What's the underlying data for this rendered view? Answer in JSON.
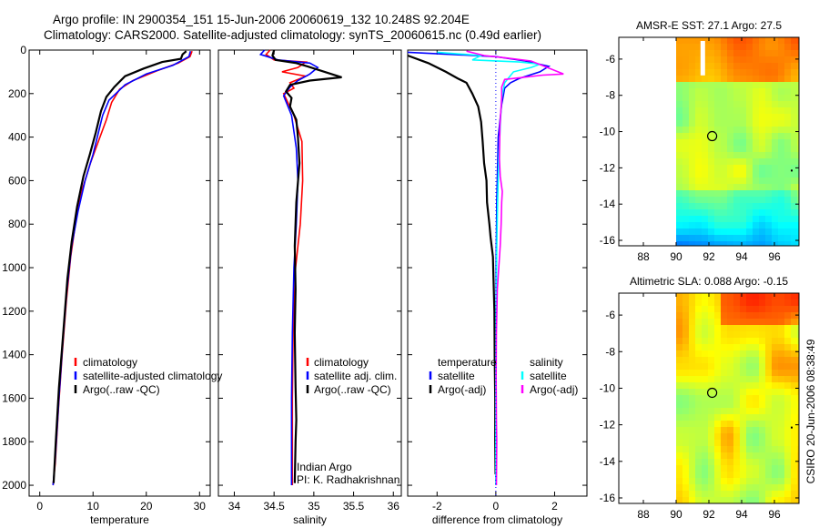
{
  "header": {
    "line1": "Argo profile: IN 2900354_151 15-Jun-2006 20060619_132 10.248S 92.204E",
    "line2": "Climatology: CARS2000. Satellite-adjusted climatology: synTS_20060615.nc (0.49d earlier)"
  },
  "side_label": "CSIRO 20-Jun-2006 08:38:49",
  "colors": {
    "red": "#ff0000",
    "blue": "#0000ff",
    "black": "#000000",
    "cyan": "#00ffff",
    "magenta": "#ff00ff"
  },
  "chart_data": [
    {
      "id": "temperature",
      "type": "line",
      "xlabel": "temperature",
      "ylabel": "",
      "xlim": [
        -2,
        32
      ],
      "ylim": [
        2050,
        0
      ],
      "xticks": [
        "0",
        "10",
        "20",
        "30"
      ],
      "xtick_values": [
        0,
        10,
        20,
        30
      ],
      "yticks": [
        "0",
        "200",
        "400",
        "600",
        "800",
        "1000",
        "1200",
        "1400",
        "1600",
        "1800",
        "2000"
      ],
      "ytick_values": [
        0,
        200,
        400,
        600,
        800,
        1000,
        1200,
        1400,
        1600,
        1800,
        2000
      ],
      "legend": {
        "position": "lower-right",
        "entries": [
          "climatology",
          "satellite-adjusted climatology",
          "Argo(..raw -QC)"
        ]
      },
      "series": [
        {
          "name": "climatology",
          "color": "red",
          "points": [
            [
              28.6,
              5
            ],
            [
              28.2,
              30
            ],
            [
              26,
              60
            ],
            [
              22,
              95
            ],
            [
              17.5,
              140
            ],
            [
              15,
              180
            ],
            [
              13.5,
              240
            ],
            [
              12.5,
              320
            ],
            [
              11,
              420
            ],
            [
              9.5,
              520
            ],
            [
              8,
              640
            ],
            [
              6.8,
              780
            ],
            [
              5.8,
              950
            ],
            [
              5,
              1150
            ],
            [
              4.2,
              1400
            ],
            [
              3.5,
              1650
            ],
            [
              2.9,
              1900
            ],
            [
              2.5,
              2000
            ]
          ]
        },
        {
          "name": "satellite-adjusted climatology",
          "color": "blue",
          "points": [
            [
              28.3,
              5
            ],
            [
              28,
              30
            ],
            [
              25,
              70
            ],
            [
              20,
              110
            ],
            [
              16,
              160
            ],
            [
              13,
              230
            ],
            [
              11.8,
              300
            ],
            [
              11,
              380
            ],
            [
              10,
              480
            ],
            [
              8.5,
              600
            ],
            [
              7.2,
              740
            ],
            [
              6,
              900
            ],
            [
              5.1,
              1100
            ],
            [
              4.3,
              1350
            ],
            [
              3.6,
              1600
            ],
            [
              2.9,
              1880
            ],
            [
              2.5,
              2000
            ]
          ]
        },
        {
          "name": "Argo(..raw -QC)",
          "color": "black",
          "points": [
            [
              27.5,
              5
            ],
            [
              26.8,
              20
            ],
            [
              26.5,
              40
            ],
            [
              23,
              55
            ],
            [
              19.5,
              85
            ],
            [
              16,
              120
            ],
            [
              14,
              170
            ],
            [
              12.5,
              215
            ],
            [
              11.5,
              280
            ],
            [
              10.5,
              380
            ],
            [
              9.4,
              480
            ],
            [
              8.2,
              580
            ],
            [
              7,
              720
            ],
            [
              6,
              880
            ],
            [
              5.2,
              1050
            ],
            [
              4.4,
              1300
            ],
            [
              3.6,
              1550
            ],
            [
              3,
              1800
            ],
            [
              2.6,
              1990
            ]
          ]
        }
      ]
    },
    {
      "id": "salinity",
      "type": "line",
      "xlabel": "salinity",
      "ylabel": "",
      "xlim": [
        33.8,
        36.1
      ],
      "ylim": [
        2050,
        0
      ],
      "xticks": [
        "34",
        "34.5",
        "35",
        "35.5",
        "36"
      ],
      "xtick_values": [
        34,
        34.5,
        35,
        35.5,
        36
      ],
      "legend": {
        "position": "lower-right",
        "entries": [
          "climatology",
          "satellite adj. clim.",
          "Argo(..raw -QC)"
        ]
      },
      "annotation": [
        "Indian Argo",
        "PI: K. Radhakrishnan"
      ],
      "series": [
        {
          "name": "climatology",
          "color": "red",
          "points": [
            [
              34.45,
              0
            ],
            [
              34.4,
              20
            ],
            [
              34.5,
              45
            ],
            [
              34.9,
              55
            ],
            [
              34.8,
              80
            ],
            [
              34.6,
              100
            ],
            [
              34.9,
              120
            ],
            [
              34.7,
              150
            ],
            [
              34.75,
              175
            ],
            [
              34.62,
              200
            ],
            [
              34.75,
              300
            ],
            [
              34.85,
              420
            ],
            [
              34.86,
              600
            ],
            [
              34.83,
              800
            ],
            [
              34.77,
              1000
            ],
            [
              34.74,
              1300
            ],
            [
              34.73,
              1600
            ],
            [
              34.73,
              1800
            ],
            [
              34.73,
              2000
            ]
          ]
        },
        {
          "name": "satellite adj. clim.",
          "color": "blue",
          "points": [
            [
              34.38,
              0
            ],
            [
              34.33,
              20
            ],
            [
              34.55,
              45
            ],
            [
              34.95,
              60
            ],
            [
              35.05,
              80
            ],
            [
              34.95,
              110
            ],
            [
              34.8,
              140
            ],
            [
              34.7,
              170
            ],
            [
              34.62,
              210
            ],
            [
              34.72,
              300
            ],
            [
              34.78,
              450
            ],
            [
              34.8,
              600
            ],
            [
              34.78,
              800
            ],
            [
              34.75,
              1000
            ],
            [
              34.73,
              1300
            ],
            [
              34.72,
              1600
            ],
            [
              34.72,
              1800
            ],
            [
              34.72,
              2000
            ]
          ]
        },
        {
          "name": "Argo(..raw -QC)",
          "color": "black",
          "points": [
            [
              34.5,
              0
            ],
            [
              34.48,
              25
            ],
            [
              34.52,
              45
            ],
            [
              34.78,
              60
            ],
            [
              34.92,
              75
            ],
            [
              35.35,
              125
            ],
            [
              34.95,
              140
            ],
            [
              34.7,
              160
            ],
            [
              34.65,
              190
            ],
            [
              34.72,
              220
            ],
            [
              34.7,
              260
            ],
            [
              34.78,
              320
            ],
            [
              34.8,
              400
            ],
            [
              34.82,
              520
            ],
            [
              34.78,
              700
            ],
            [
              34.76,
              900
            ],
            [
              34.77,
              1100
            ],
            [
              34.76,
              1300
            ],
            [
              34.77,
              1550
            ],
            [
              34.78,
              1700
            ],
            [
              34.77,
              1800
            ],
            [
              34.76,
              1990
            ]
          ]
        }
      ]
    },
    {
      "id": "difference",
      "type": "line",
      "xlabel": "difference from climatology",
      "ylabel": "",
      "xlim": [
        -3,
        3.1
      ],
      "ylim": [
        2050,
        0
      ],
      "xticks": [
        "-2",
        "0",
        "2"
      ],
      "xtick_values": [
        -2,
        0,
        2
      ],
      "legend": {
        "position": "lower-right",
        "columns": [
          [
            "temperature",
            "satellite",
            "Argo(-adj)"
          ],
          [
            "salinity",
            "satellite",
            "Argo(-adj)"
          ]
        ]
      },
      "series": [
        {
          "name": "temperature satellite",
          "color": "blue",
          "points": [
            [
              -3,
              10
            ],
            [
              -1.5,
              20
            ],
            [
              0,
              30
            ],
            [
              1,
              50
            ],
            [
              1.8,
              75
            ],
            [
              1.5,
              100
            ],
            [
              0.8,
              130
            ],
            [
              0.5,
              150
            ],
            [
              0.3,
              175
            ],
            [
              0.2,
              250
            ],
            [
              0.08,
              400
            ],
            [
              0.03,
              700
            ],
            [
              0.01,
              1000
            ],
            [
              0,
              1500
            ],
            [
              0,
              2000
            ]
          ]
        },
        {
          "name": "temperature Argo(-adj)",
          "color": "black",
          "points": [
            [
              -3,
              25
            ],
            [
              -2.3,
              60
            ],
            [
              -1.7,
              100
            ],
            [
              -1.3,
              130
            ],
            [
              -1,
              150
            ],
            [
              -0.8,
              200
            ],
            [
              -0.6,
              260
            ],
            [
              -0.5,
              330
            ],
            [
              -0.45,
              420
            ],
            [
              -0.4,
              520
            ],
            [
              -0.32,
              600
            ],
            [
              -0.3,
              700
            ],
            [
              -0.22,
              800
            ],
            [
              -0.18,
              860
            ],
            [
              -0.1,
              950
            ],
            [
              -0.08,
              1050
            ],
            [
              -0.05,
              1200
            ],
            [
              -0.04,
              1400
            ],
            [
              -0.02,
              1600
            ],
            [
              -0.02,
              1800
            ],
            [
              -0.01,
              1950
            ]
          ]
        },
        {
          "name": "salinity satellite",
          "color": "cyan",
          "points": [
            [
              -2,
              10
            ],
            [
              -0.5,
              25
            ],
            [
              -0.8,
              45
            ],
            [
              0.8,
              55
            ],
            [
              1.5,
              65
            ],
            [
              1.2,
              80
            ],
            [
              0.6,
              100
            ],
            [
              0.3,
              150
            ],
            [
              0.2,
              220
            ],
            [
              0.15,
              350
            ],
            [
              0.1,
              500
            ],
            [
              0.06,
              700
            ],
            [
              0.03,
              900
            ],
            [
              0.01,
              1200
            ],
            [
              0,
              1500
            ],
            [
              0,
              2000
            ]
          ]
        },
        {
          "name": "salinity Argo(-adj)",
          "color": "magenta",
          "points": [
            [
              -1,
              5
            ],
            [
              -0.4,
              25
            ],
            [
              0.3,
              35
            ],
            [
              1.2,
              50
            ],
            [
              2.3,
              110
            ],
            [
              1.6,
              115
            ],
            [
              0.3,
              135
            ],
            [
              0.2,
              170
            ],
            [
              0.2,
              220
            ],
            [
              0.14,
              350
            ],
            [
              0.12,
              500
            ],
            [
              0.15,
              580
            ],
            [
              0.22,
              650
            ],
            [
              0.2,
              700
            ],
            [
              0.18,
              800
            ],
            [
              0.15,
              900
            ],
            [
              0.05,
              1100
            ],
            [
              0.02,
              1300
            ],
            [
              0.01,
              1500
            ],
            [
              0.02,
              1700
            ],
            [
              0.03,
              1800
            ],
            [
              0.02,
              2000
            ]
          ]
        }
      ]
    },
    {
      "id": "sst_map",
      "type": "heatmap",
      "title": "AMSR-E SST: 27.1  Argo: 27.5",
      "xlim": [
        86.5,
        97.5
      ],
      "ylim": [
        -16.3,
        -4.8
      ],
      "xticks": [
        "88",
        "90",
        "92",
        "94",
        "96"
      ],
      "xtick_values": [
        88,
        90,
        92,
        94,
        96
      ],
      "yticks": [
        "-6",
        "-8",
        "-10",
        "-12",
        "-14",
        "-16"
      ],
      "ytick_values": [
        -6,
        -8,
        -10,
        -12,
        -14,
        -16
      ],
      "data_lon_range": [
        90,
        97.5
      ],
      "argo_position": {
        "lon": 92.2,
        "lat": -10.25
      },
      "missing_track_lon": 91.6,
      "missing_track_lat": [
        -5,
        -6.9
      ]
    },
    {
      "id": "sla_map",
      "type": "heatmap",
      "title": "Altimetric SLA: 0.088  Argo: -0.15",
      "xlim": [
        86.5,
        97.5
      ],
      "ylim": [
        -16.3,
        -4.8
      ],
      "xticks": [
        "88",
        "90",
        "92",
        "94",
        "96"
      ],
      "xtick_values": [
        88,
        90,
        92,
        94,
        96
      ],
      "yticks": [
        "-6",
        "-8",
        "-10",
        "-12",
        "-14",
        "-16"
      ],
      "ytick_values": [
        -6,
        -8,
        -10,
        -12,
        -14,
        -16
      ],
      "data_lon_range": [
        90,
        97.5
      ],
      "argo_position": {
        "lon": 92.2,
        "lat": -10.25
      }
    }
  ]
}
